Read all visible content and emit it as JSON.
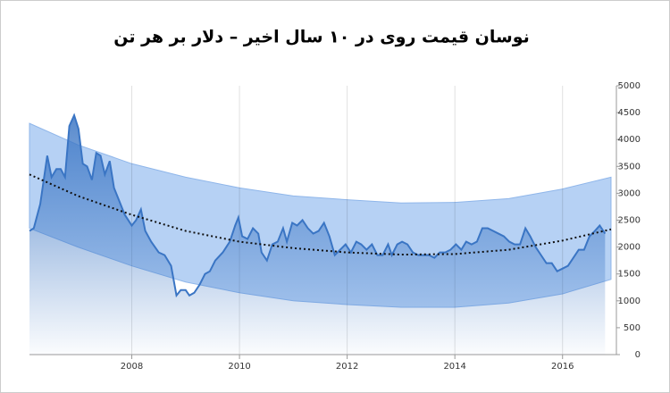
{
  "chart_data": {
    "type": "area",
    "title": "نوسان قیمت روی در ۱۰ سال اخیر – دلار بر هر تن",
    "x": [
      2006.1,
      2006.18,
      2006.3,
      2006.43,
      2006.51,
      2006.6,
      2006.68,
      2006.76,
      2006.84,
      2006.93,
      2007.01,
      2007.09,
      2007.17,
      2007.26,
      2007.34,
      2007.42,
      2007.5,
      2007.59,
      2007.67,
      2007.75,
      2007.87,
      2008.0,
      2008.08,
      2008.17,
      2008.25,
      2008.36,
      2008.5,
      2008.61,
      2008.73,
      2008.83,
      2008.91,
      2009.0,
      2009.07,
      2009.16,
      2009.26,
      2009.36,
      2009.45,
      2009.55,
      2009.69,
      2009.82,
      2009.92,
      2009.98,
      2010.05,
      2010.15,
      2010.25,
      2010.35,
      2010.41,
      2010.51,
      2010.61,
      2010.71,
      2010.81,
      2010.88,
      2010.98,
      2011.07,
      2011.17,
      2011.27,
      2011.37,
      2011.47,
      2011.57,
      2011.67,
      2011.77,
      2011.87,
      2011.97,
      2012.07,
      2012.17,
      2012.26,
      2012.36,
      2012.46,
      2012.56,
      2012.66,
      2012.76,
      2012.83,
      2012.93,
      2013.02,
      2013.12,
      2013.22,
      2013.32,
      2013.42,
      2013.52,
      2013.62,
      2013.72,
      2013.82,
      2013.92,
      2014.02,
      2014.12,
      2014.21,
      2014.31,
      2014.41,
      2014.51,
      2014.61,
      2014.71,
      2014.81,
      2014.91,
      2015.01,
      2015.11,
      2015.21,
      2015.31,
      2015.4,
      2015.5,
      2015.6,
      2015.7,
      2015.8,
      2015.9,
      2016.0,
      2016.1,
      2016.2,
      2016.3,
      2016.4,
      2016.5,
      2016.6,
      2016.69,
      2016.79
    ],
    "series": [
      {
        "color": "#3a75c4",
        "values": [
          2300,
          2350,
          2800,
          3700,
          3300,
          3450,
          3450,
          3300,
          4250,
          4450,
          4200,
          3550,
          3500,
          3250,
          3750,
          3700,
          3350,
          3600,
          3100,
          2900,
          2600,
          2400,
          2500,
          2700,
          2300,
          2100,
          1900,
          1850,
          1650,
          1100,
          1200,
          1200,
          1100,
          1150,
          1300,
          1500,
          1550,
          1750,
          1900,
          2100,
          2400,
          2550,
          2200,
          2150,
          2350,
          2250,
          1900,
          1750,
          2050,
          2100,
          2350,
          2100,
          2450,
          2400,
          2500,
          2350,
          2250,
          2300,
          2450,
          2200,
          1850,
          1950,
          2050,
          1900,
          2100,
          2050,
          1950,
          2050,
          1850,
          1850,
          2050,
          1850,
          2050,
          2100,
          2050,
          1900,
          1850,
          1850,
          1850,
          1800,
          1900,
          1900,
          1950,
          2050,
          1950,
          2100,
          2050,
          2100,
          2350,
          2350,
          2300,
          2250,
          2200,
          2100,
          2050,
          2050,
          2350,
          2200,
          2000,
          1850,
          1700,
          1700,
          1550,
          1600,
          1650,
          1800,
          1950,
          1950,
          2200,
          2300,
          2400,
          2250
        ]
      }
    ],
    "trend": {
      "color": "#111111",
      "x": [
        2006.1,
        2007,
        2008,
        2009,
        2010,
        2011,
        2012,
        2013,
        2014,
        2015,
        2016,
        2016.9
      ],
      "values": [
        3350,
        2950,
        2600,
        2300,
        2100,
        1980,
        1900,
        1860,
        1870,
        1950,
        2120,
        2330
      ]
    },
    "band": {
      "color": "#a9c9f2",
      "x": [
        2006.1,
        2007,
        2008,
        2009,
        2010,
        2011,
        2012,
        2013,
        2014,
        2015,
        2016,
        2016.9
      ],
      "upper": [
        4300,
        3900,
        3550,
        3300,
        3100,
        2950,
        2880,
        2820,
        2830,
        2900,
        3080,
        3300
      ],
      "lower": [
        2350,
        2000,
        1650,
        1350,
        1150,
        1000,
        930,
        880,
        880,
        960,
        1130,
        1400
      ]
    },
    "xlim": [
      2006.1,
      2017
    ],
    "xticks": [
      2008,
      2010,
      2012,
      2014,
      2016
    ],
    "ylim": [
      0,
      5000
    ],
    "yticks": [
      0,
      500,
      1000,
      1500,
      2000,
      2500,
      3000,
      3500,
      4000,
      4500,
      5000
    ],
    "grid": "x"
  }
}
